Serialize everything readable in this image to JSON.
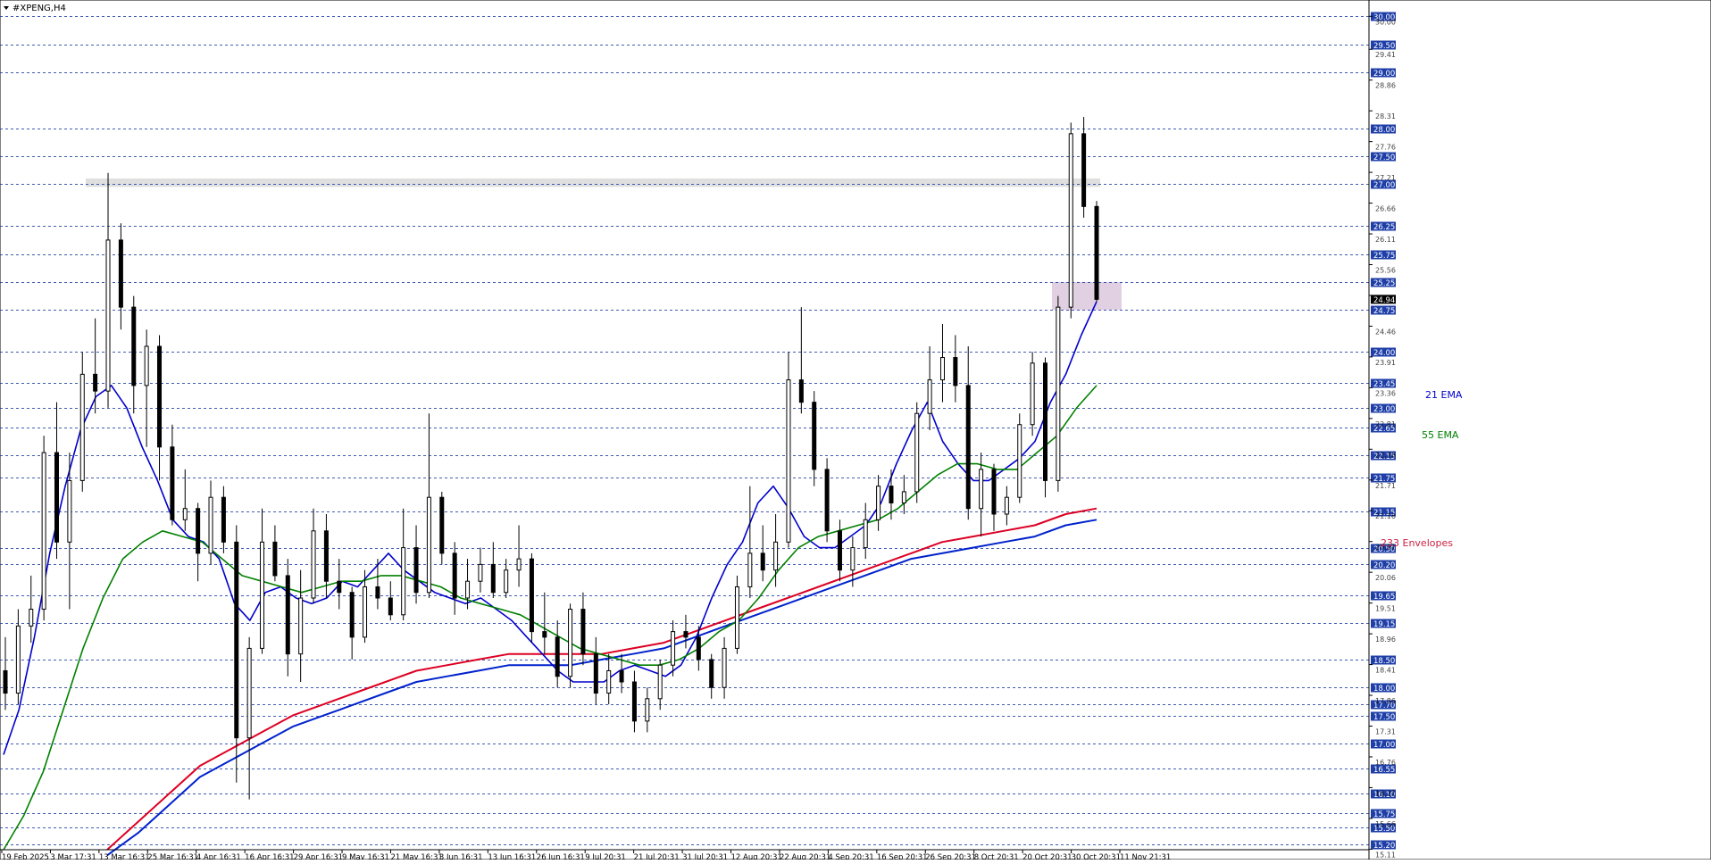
{
  "window": {
    "title": "#XPENG,H4",
    "menu_icon": "triangle-down-icon"
  },
  "chart_data": {
    "type": "candlestick",
    "symbol": "#XPENG",
    "timeframe": "H4",
    "ylim": [
      15.1,
      30.1
    ],
    "grid": false,
    "right_axis_ticks": [
      "30.00",
      "29.41",
      "28.86",
      "28.31",
      "27.76",
      "27.21",
      "26.66",
      "26.11",
      "25.56",
      "25.01",
      "24.46",
      "23.91",
      "23.36",
      "22.81",
      "22.26",
      "21.71",
      "21.16",
      "20.61",
      "20.06",
      "19.51",
      "18.96",
      "18.41",
      "17.86",
      "17.31",
      "16.76",
      "16.21",
      "15.66",
      "15.11"
    ],
    "level_lines": [
      30.0,
      29.5,
      29.0,
      28.0,
      27.5,
      27.0,
      26.25,
      25.75,
      25.25,
      24.75,
      24.0,
      23.45,
      23.0,
      22.65,
      22.15,
      21.75,
      21.15,
      20.5,
      20.2,
      19.65,
      19.15,
      18.5,
      18.0,
      17.7,
      17.5,
      17.0,
      16.55,
      16.1,
      15.75,
      15.5,
      15.2
    ],
    "level_labels": [
      "30.00",
      "29.50",
      "29.00",
      "28.00",
      "27.50",
      "27.00",
      "26.25",
      "25.75",
      "25.25",
      "24.75",
      "24.00",
      "23.45",
      "23.00",
      "22.65",
      "22.15",
      "21.75",
      "21.15",
      "20.50",
      "20.20",
      "19.65",
      "19.15",
      "18.50",
      "18.00",
      "17.70",
      "17.50",
      "17.00",
      "16.55",
      "16.10",
      "15.75",
      "15.50",
      "15.20"
    ],
    "current_price": "24.94",
    "x_labels": [
      "19 Feb 2025",
      "3 Mar 17:31",
      "13 Mar 16:31",
      "25 Mar 16:31",
      "4 Apr 16:31",
      "16 Apr 16:31",
      "29 Apr 16:31",
      "9 May 16:31",
      "21 May 16:31",
      "3 Jun 16:31",
      "13 Jun 16:31",
      "26 Jun 16:31",
      "9 Jul 20:31",
      "21 Jul 20:31",
      "31 Jul 20:31",
      "12 Aug 20:31",
      "22 Aug 20:31",
      "4 Sep 20:31",
      "16 Sep 20:31",
      "26 Sep 20:31",
      "8 Oct 20:31",
      "20 Oct 20:31",
      "30 Oct 20:31",
      "11 Nov 21:31"
    ],
    "indicator_labels": {
      "ema21": "21 EMA",
      "ema55": "55 EMA",
      "envelopes": "233 Envelopes"
    },
    "zones": [
      {
        "name": "resistance",
        "from": 26.95,
        "to": 27.1,
        "color": "#d9d9d9"
      },
      {
        "name": "support",
        "from": 24.75,
        "to": 25.25,
        "color": "#dcc8dc"
      }
    ],
    "series": {
      "candles_ohlc": [
        [
          18.3,
          18.9,
          17.6,
          17.9
        ],
        [
          17.9,
          19.4,
          17.7,
          19.1
        ],
        [
          19.1,
          20.0,
          18.8,
          19.4
        ],
        [
          19.4,
          22.5,
          19.2,
          22.2
        ],
        [
          22.2,
          23.1,
          20.3,
          20.6
        ],
        [
          20.6,
          22.2,
          19.4,
          21.7
        ],
        [
          21.7,
          24.0,
          21.5,
          23.6
        ],
        [
          23.6,
          24.6,
          22.9,
          23.3
        ],
        [
          23.3,
          27.2,
          23.0,
          26.0
        ],
        [
          26.0,
          26.3,
          24.4,
          24.8
        ],
        [
          24.8,
          25.0,
          22.9,
          23.4
        ],
        [
          23.4,
          24.4,
          22.3,
          24.1
        ],
        [
          24.1,
          24.3,
          21.7,
          22.3
        ],
        [
          22.3,
          22.7,
          20.9,
          21.0
        ],
        [
          21.0,
          21.9,
          20.8,
          21.2
        ],
        [
          21.2,
          21.3,
          19.9,
          20.4
        ],
        [
          20.4,
          21.7,
          20.2,
          21.4
        ],
        [
          21.4,
          21.6,
          20.4,
          20.6
        ],
        [
          20.6,
          20.9,
          16.3,
          17.1
        ],
        [
          17.1,
          18.9,
          16.0,
          18.7
        ],
        [
          18.7,
          21.2,
          18.6,
          20.6
        ],
        [
          20.6,
          20.9,
          19.9,
          20.0
        ],
        [
          20.0,
          20.3,
          18.2,
          18.6
        ],
        [
          18.6,
          20.1,
          18.1,
          19.6
        ],
        [
          19.6,
          21.2,
          19.5,
          20.8
        ],
        [
          20.8,
          21.1,
          19.6,
          19.9
        ],
        [
          19.9,
          20.3,
          19.4,
          19.7
        ],
        [
          19.7,
          19.8,
          18.5,
          18.9
        ],
        [
          18.9,
          20.1,
          18.8,
          19.8
        ],
        [
          19.8,
          20.3,
          19.4,
          19.6
        ],
        [
          19.6,
          19.9,
          19.2,
          19.3
        ],
        [
          19.3,
          21.2,
          19.2,
          20.5
        ],
        [
          20.5,
          20.9,
          19.5,
          19.7
        ],
        [
          19.7,
          22.9,
          19.6,
          21.4
        ],
        [
          21.4,
          21.5,
          20.2,
          20.4
        ],
        [
          20.4,
          20.6,
          19.3,
          19.6
        ],
        [
          19.6,
          20.3,
          19.4,
          19.9
        ],
        [
          19.9,
          20.5,
          19.7,
          20.2
        ],
        [
          20.2,
          20.6,
          19.6,
          19.7
        ],
        [
          19.7,
          20.3,
          19.6,
          20.1
        ],
        [
          20.1,
          20.9,
          19.8,
          20.3
        ],
        [
          20.3,
          20.4,
          18.8,
          19.0
        ],
        [
          19.0,
          19.7,
          18.6,
          18.9
        ],
        [
          18.9,
          19.2,
          18.0,
          18.2
        ],
        [
          18.2,
          19.5,
          18.0,
          19.4
        ],
        [
          19.4,
          19.7,
          18.4,
          18.6
        ],
        [
          18.6,
          18.9,
          17.7,
          17.9
        ],
        [
          17.9,
          18.6,
          17.7,
          18.3
        ],
        [
          18.3,
          18.6,
          17.9,
          18.1
        ],
        [
          18.1,
          18.3,
          17.2,
          17.4
        ],
        [
          17.4,
          18.0,
          17.2,
          17.8
        ],
        [
          17.8,
          18.5,
          17.6,
          18.4
        ],
        [
          18.4,
          19.2,
          18.2,
          19.0
        ],
        [
          19.0,
          19.3,
          18.7,
          18.9
        ],
        [
          18.9,
          19.1,
          18.3,
          18.5
        ],
        [
          18.5,
          18.6,
          17.8,
          18.0
        ],
        [
          18.0,
          18.9,
          17.8,
          18.7
        ],
        [
          18.7,
          20.0,
          18.6,
          19.8
        ],
        [
          19.8,
          21.6,
          19.6,
          20.4
        ],
        [
          20.4,
          20.9,
          19.9,
          20.1
        ],
        [
          20.1,
          21.1,
          19.8,
          20.6
        ],
        [
          20.6,
          24.0,
          20.5,
          23.5
        ],
        [
          23.5,
          24.8,
          22.9,
          23.1
        ],
        [
          23.1,
          23.3,
          21.6,
          21.9
        ],
        [
          21.9,
          22.1,
          20.6,
          20.8
        ],
        [
          20.8,
          21.0,
          19.9,
          20.1
        ],
        [
          20.1,
          20.7,
          19.8,
          20.5
        ],
        [
          20.5,
          21.3,
          20.3,
          21.0
        ],
        [
          21.0,
          21.8,
          20.8,
          21.6
        ],
        [
          21.6,
          21.9,
          21.0,
          21.3
        ],
        [
          21.3,
          21.8,
          21.1,
          21.5
        ],
        [
          21.5,
          23.1,
          21.3,
          22.9
        ],
        [
          22.9,
          24.1,
          22.6,
          23.5
        ],
        [
          23.5,
          24.5,
          23.1,
          23.9
        ],
        [
          23.9,
          24.3,
          23.1,
          23.4
        ],
        [
          23.4,
          24.1,
          21.0,
          21.2
        ],
        [
          21.2,
          22.2,
          20.7,
          21.9
        ],
        [
          21.9,
          22.0,
          20.8,
          21.1
        ],
        [
          21.1,
          21.6,
          20.9,
          21.4
        ],
        [
          21.4,
          22.9,
          21.3,
          22.7
        ],
        [
          22.7,
          24.0,
          22.5,
          23.8
        ],
        [
          23.8,
          23.9,
          21.4,
          21.7
        ],
        [
          21.7,
          25.0,
          21.5,
          24.8
        ],
        [
          24.8,
          28.1,
          24.6,
          27.9
        ],
        [
          27.9,
          28.2,
          26.4,
          26.6
        ],
        [
          26.6,
          26.7,
          24.9,
          24.94
        ]
      ],
      "ema21": [
        16.8,
        17.6,
        18.9,
        20.4,
        21.6,
        22.6,
        23.2,
        23.4,
        23.0,
        22.3,
        21.7,
        21.0,
        20.7,
        20.6,
        20.3,
        19.5,
        19.2,
        19.7,
        19.8,
        19.6,
        19.5,
        19.6,
        19.9,
        19.8,
        20.1,
        20.4,
        20.1,
        19.9,
        19.7,
        19.6,
        19.5,
        19.6,
        19.4,
        19.2,
        18.9,
        18.6,
        18.3,
        18.1,
        18.1,
        18.1,
        18.3,
        18.4,
        18.3,
        18.2,
        18.4,
        18.9,
        19.6,
        20.2,
        20.6,
        21.3,
        21.6,
        21.2,
        20.7,
        20.5,
        20.5,
        20.7,
        20.9,
        21.3,
        22.0,
        22.6,
        23.1,
        22.4,
        22.0,
        21.7,
        21.7,
        21.9,
        22.1,
        22.4,
        23.1,
        23.6,
        24.3,
        24.9
      ],
      "ema55": [
        15.1,
        15.7,
        16.5,
        17.6,
        18.7,
        19.6,
        20.3,
        20.6,
        20.8,
        20.7,
        20.6,
        20.3,
        20.0,
        19.9,
        19.8,
        19.7,
        19.8,
        19.9,
        19.9,
        20.0,
        20.0,
        19.9,
        19.8,
        19.6,
        19.5,
        19.4,
        19.3,
        19.1,
        18.9,
        18.7,
        18.6,
        18.5,
        18.4,
        18.4,
        18.5,
        18.7,
        19.0,
        19.2,
        19.6,
        20.1,
        20.5,
        20.7,
        20.8,
        20.9,
        21.0,
        21.2,
        21.5,
        21.8,
        22.0,
        22.0,
        21.9,
        21.9,
        22.2,
        22.5,
        23.0,
        23.4
      ],
      "envelope_upper": [
        15.1,
        15.6,
        16.1,
        16.6,
        16.9,
        17.2,
        17.5,
        17.7,
        17.9,
        18.1,
        18.3,
        18.4,
        18.5,
        18.6,
        18.6,
        18.6,
        18.6,
        18.7,
        18.8,
        19.0,
        19.2,
        19.4,
        19.6,
        19.8,
        20.0,
        20.2,
        20.4,
        20.6,
        20.7,
        20.8,
        20.9,
        21.1,
        21.2
      ],
      "envelope_lower": [
        15.0,
        15.4,
        15.9,
        16.4,
        16.7,
        17.0,
        17.3,
        17.5,
        17.7,
        17.9,
        18.1,
        18.2,
        18.3,
        18.4,
        18.4,
        18.4,
        18.5,
        18.6,
        18.7,
        18.9,
        19.1,
        19.3,
        19.5,
        19.7,
        19.9,
        20.1,
        20.3,
        20.4,
        20.5,
        20.6,
        20.7,
        20.9,
        21.0
      ]
    },
    "colors": {
      "ema21": "#0000cc",
      "ema55": "#008000",
      "envelope_upper": "#dd0022",
      "envelope_lower": "#0022cc",
      "level_line": "#1f3fa8",
      "level_label_bg": "#1f3fa8",
      "current_price_bg": "#000000",
      "envelope_label": "#cc2244"
    }
  }
}
